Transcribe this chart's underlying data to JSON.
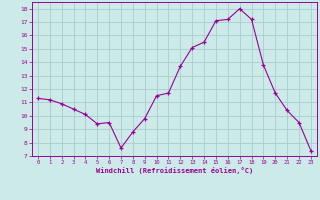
{
  "x": [
    0,
    1,
    2,
    3,
    4,
    5,
    6,
    7,
    8,
    9,
    10,
    11,
    12,
    13,
    14,
    15,
    16,
    17,
    18,
    19,
    20,
    21,
    22,
    23
  ],
  "y": [
    11.3,
    11.2,
    10.9,
    10.5,
    10.1,
    9.4,
    9.5,
    7.6,
    8.8,
    9.8,
    11.5,
    11.7,
    13.7,
    15.1,
    15.5,
    17.1,
    17.2,
    18.0,
    17.2,
    13.8,
    11.7,
    10.4,
    9.5,
    7.4
  ],
  "line_color": "#990099",
  "marker": "+",
  "bg_color": "#cceae7",
  "grid_color": "#aacccc",
  "xlabel": "Windchill (Refroidissement éolien,°C)",
  "xlabel_color": "#990099",
  "tick_color": "#990099",
  "ylim": [
    7,
    18.5
  ],
  "xlim": [
    -0.5,
    23.5
  ],
  "yticks": [
    7,
    8,
    9,
    10,
    11,
    12,
    13,
    14,
    15,
    16,
    17,
    18
  ],
  "xticks": [
    0,
    1,
    2,
    3,
    4,
    5,
    6,
    7,
    8,
    9,
    10,
    11,
    12,
    13,
    14,
    15,
    16,
    17,
    18,
    19,
    20,
    21,
    22,
    23
  ]
}
